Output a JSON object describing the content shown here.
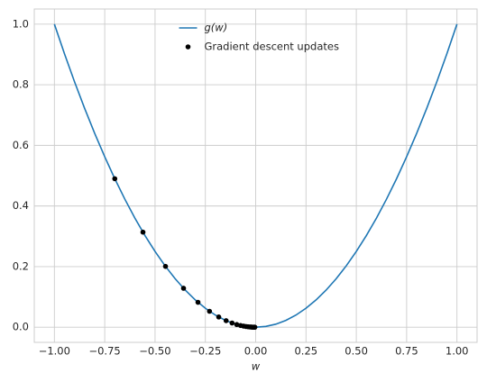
{
  "chart_data": {
    "type": "line",
    "xlabel": "w",
    "xlim": [
      -1.1,
      1.1
    ],
    "ylim": [
      -0.05,
      1.05
    ],
    "xticks": [
      {
        "value": -1,
        "label": "−1.00"
      },
      {
        "value": -0.75,
        "label": "−0.75"
      },
      {
        "value": -0.5,
        "label": "−0.50"
      },
      {
        "value": -0.25,
        "label": "−0.25"
      },
      {
        "value": 0,
        "label": "0.00"
      },
      {
        "value": 0.25,
        "label": "0.25"
      },
      {
        "value": 0.5,
        "label": "0.50"
      },
      {
        "value": 0.75,
        "label": "0.75"
      },
      {
        "value": 1,
        "label": "1.00"
      }
    ],
    "yticks": [
      {
        "value": 0,
        "label": "0.0"
      },
      {
        "value": 0.2,
        "label": "0.2"
      },
      {
        "value": 0.4,
        "label": "0.4"
      },
      {
        "value": 0.6,
        "label": "0.6"
      },
      {
        "value": 0.8,
        "label": "0.8"
      },
      {
        "value": 1,
        "label": "1.0"
      }
    ],
    "grid": true,
    "legend": "upper center",
    "series": [
      {
        "name": "g(w)",
        "type": "line",
        "color": "#1f77b4",
        "x": [
          -1,
          -0.95,
          -0.9,
          -0.85,
          -0.8,
          -0.75,
          -0.7,
          -0.65,
          -0.6,
          -0.55,
          -0.5,
          -0.45,
          -0.4,
          -0.35,
          -0.3,
          -0.25,
          -0.2,
          -0.15,
          -0.1,
          -0.05,
          0,
          0.05,
          0.1,
          0.15,
          0.2,
          0.25,
          0.3,
          0.35,
          0.4,
          0.45,
          0.5,
          0.55,
          0.6,
          0.65,
          0.7,
          0.75,
          0.8,
          0.85,
          0.9,
          0.95,
          1
        ],
        "values": [
          1,
          0.9025,
          0.81,
          0.7225,
          0.64,
          0.5625,
          0.49,
          0.4225,
          0.36,
          0.3025,
          0.25,
          0.2025,
          0.16,
          0.1225,
          0.09,
          0.0625,
          0.04,
          0.0225,
          0.01,
          0.0025,
          0,
          0.0025,
          0.01,
          0.0225,
          0.04,
          0.0625,
          0.09,
          0.1225,
          0.16,
          0.2025,
          0.25,
          0.3025,
          0.36,
          0.4225,
          0.49,
          0.5625,
          0.64,
          0.7225,
          0.81,
          0.9025,
          1
        ]
      },
      {
        "name": "Gradient descent updates",
        "type": "scatter",
        "color": "#000000",
        "x": [
          -0.7,
          -0.56,
          -0.448,
          -0.3584,
          -0.2867,
          -0.2294,
          -0.1835,
          -0.1468,
          -0.1174,
          -0.094,
          -0.0752,
          -0.0601,
          -0.0481,
          -0.0385,
          -0.0308,
          -0.0246,
          -0.0197,
          -0.0158,
          -0.0126,
          -0.0101,
          -0.0081,
          -0.0065,
          -0.0052,
          -0.0041
        ],
        "values": [
          0.49,
          0.3136,
          0.2007,
          0.1285,
          0.0822,
          0.0526,
          0.0337,
          0.0215,
          0.0138,
          0.0088,
          0.0057,
          0.0036,
          0.0023,
          0.0015,
          0.0009,
          0.0006,
          0.0004,
          0.0002,
          0.0002,
          0.0001,
          0.0001,
          0,
          0,
          0
        ]
      }
    ]
  }
}
